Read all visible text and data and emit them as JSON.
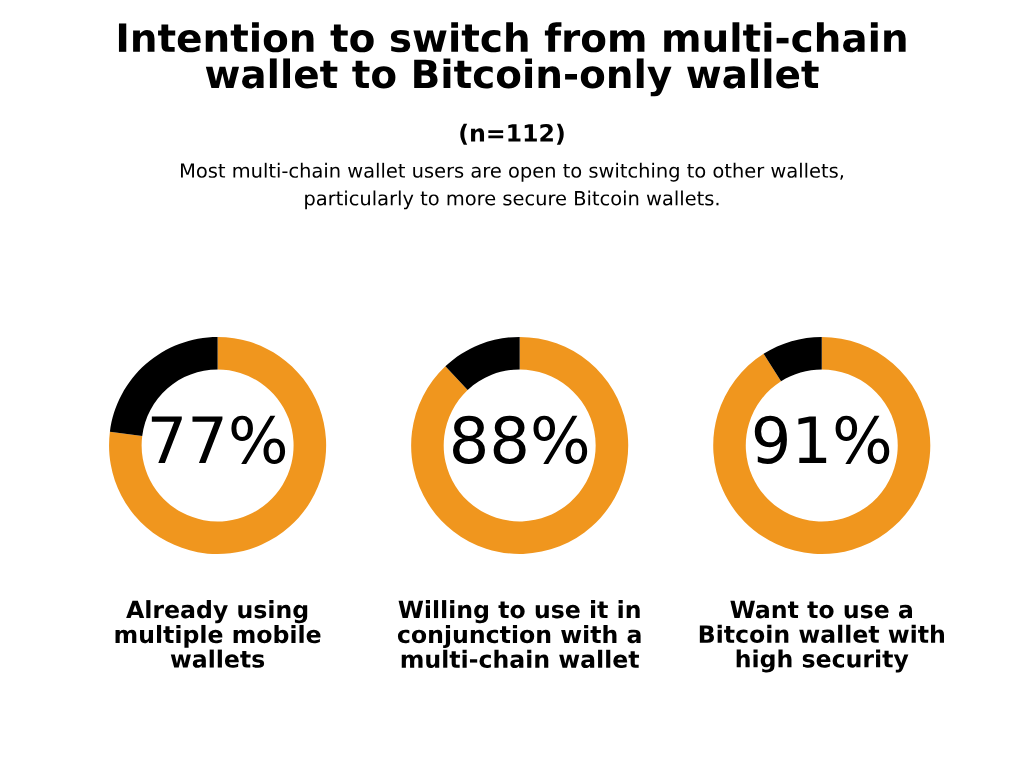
{
  "chart_data": [
    {
      "type": "other",
      "title": "Intention to switch from multi-chain\nwallet to Bitcoin-only wallet",
      "subtitle": "(n=112)",
      "annotations": [
        "Most multi-chain wallet users are open to switching to other wallets,\nparticularly to more secure Bitcoin wallets."
      ]
    },
    {
      "type": "donut",
      "categories": [
        null,
        null
      ],
      "values": [
        77,
        23
      ],
      "colors": [
        "#f0961e",
        "#000000"
      ],
      "value_labels": [
        "77%",
        null
      ],
      "xlabel": "Already using\nmultiple mobile\nwallets"
    },
    {
      "type": "donut",
      "categories": [
        null,
        null
      ],
      "values": [
        88,
        12
      ],
      "colors": [
        "#f0961e",
        "#000000"
      ],
      "value_labels": [
        "88%",
        null
      ],
      "xlabel": "Willing to use it in\nconjunction with a\nmulti-chain wallet"
    },
    {
      "type": "donut",
      "categories": [
        null,
        null
      ],
      "values": [
        91,
        9
      ],
      "colors": [
        "#f0961e",
        "#000000"
      ],
      "value_labels": [
        "91%",
        null
      ],
      "xlabel": "Want to use a\nBitcoin wallet with\nhigh security"
    }
  ]
}
